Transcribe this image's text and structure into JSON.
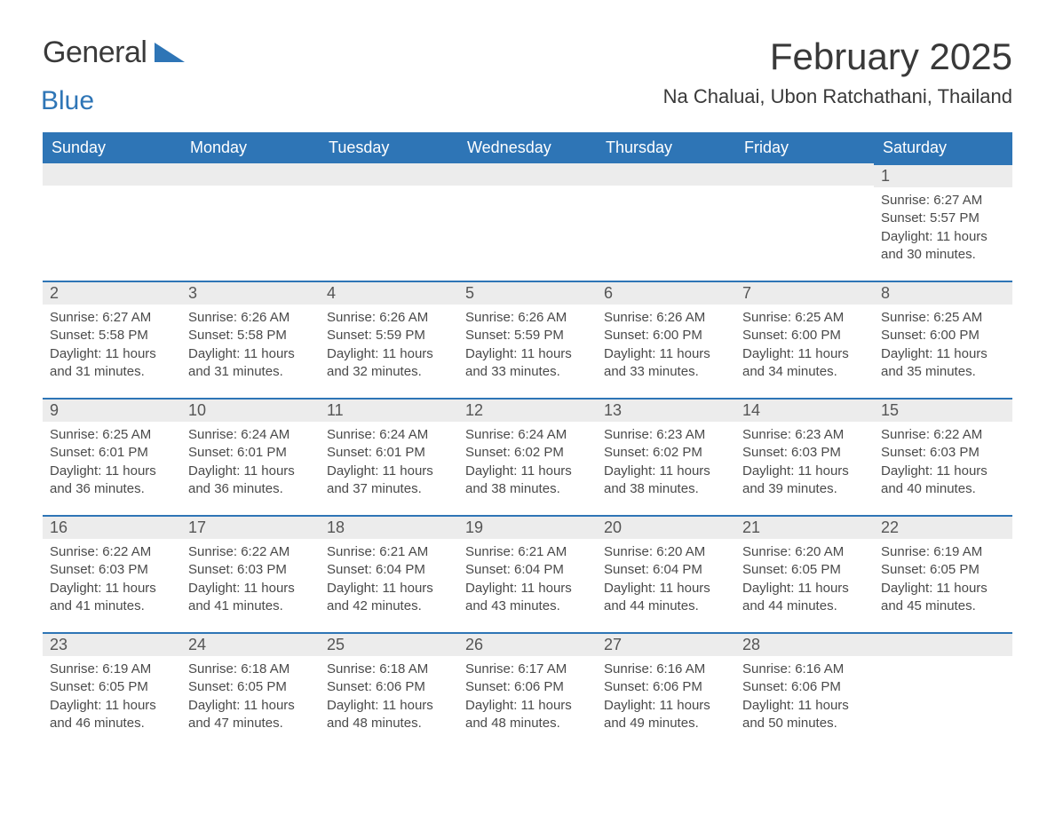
{
  "logo": {
    "part1": "General",
    "part2": "Blue",
    "color1": "#3a3a3a",
    "color2": "#2e75b6"
  },
  "title": "February 2025",
  "location": "Na Chaluai, Ubon Ratchathani, Thailand",
  "styling": {
    "header_bg": "#2e75b6",
    "header_fg": "#ffffff",
    "daynum_bg": "#ececec",
    "daynum_border": "#2e75b6",
    "text_color": "#4a4a4a",
    "title_fontsize": 42,
    "location_fontsize": 22,
    "header_fontsize": 18,
    "daynum_fontsize": 18,
    "body_fontsize": 15,
    "page_bg": "#ffffff"
  },
  "columns": [
    "Sunday",
    "Monday",
    "Tuesday",
    "Wednesday",
    "Thursday",
    "Friday",
    "Saturday"
  ],
  "weeks": [
    [
      null,
      null,
      null,
      null,
      null,
      null,
      {
        "n": "1",
        "sunrise": "6:27 AM",
        "sunset": "5:57 PM",
        "daylight": "11 hours and 30 minutes."
      }
    ],
    [
      {
        "n": "2",
        "sunrise": "6:27 AM",
        "sunset": "5:58 PM",
        "daylight": "11 hours and 31 minutes."
      },
      {
        "n": "3",
        "sunrise": "6:26 AM",
        "sunset": "5:58 PM",
        "daylight": "11 hours and 31 minutes."
      },
      {
        "n": "4",
        "sunrise": "6:26 AM",
        "sunset": "5:59 PM",
        "daylight": "11 hours and 32 minutes."
      },
      {
        "n": "5",
        "sunrise": "6:26 AM",
        "sunset": "5:59 PM",
        "daylight": "11 hours and 33 minutes."
      },
      {
        "n": "6",
        "sunrise": "6:26 AM",
        "sunset": "6:00 PM",
        "daylight": "11 hours and 33 minutes."
      },
      {
        "n": "7",
        "sunrise": "6:25 AM",
        "sunset": "6:00 PM",
        "daylight": "11 hours and 34 minutes."
      },
      {
        "n": "8",
        "sunrise": "6:25 AM",
        "sunset": "6:00 PM",
        "daylight": "11 hours and 35 minutes."
      }
    ],
    [
      {
        "n": "9",
        "sunrise": "6:25 AM",
        "sunset": "6:01 PM",
        "daylight": "11 hours and 36 minutes."
      },
      {
        "n": "10",
        "sunrise": "6:24 AM",
        "sunset": "6:01 PM",
        "daylight": "11 hours and 36 minutes."
      },
      {
        "n": "11",
        "sunrise": "6:24 AM",
        "sunset": "6:01 PM",
        "daylight": "11 hours and 37 minutes."
      },
      {
        "n": "12",
        "sunrise": "6:24 AM",
        "sunset": "6:02 PM",
        "daylight": "11 hours and 38 minutes."
      },
      {
        "n": "13",
        "sunrise": "6:23 AM",
        "sunset": "6:02 PM",
        "daylight": "11 hours and 38 minutes."
      },
      {
        "n": "14",
        "sunrise": "6:23 AM",
        "sunset": "6:03 PM",
        "daylight": "11 hours and 39 minutes."
      },
      {
        "n": "15",
        "sunrise": "6:22 AM",
        "sunset": "6:03 PM",
        "daylight": "11 hours and 40 minutes."
      }
    ],
    [
      {
        "n": "16",
        "sunrise": "6:22 AM",
        "sunset": "6:03 PM",
        "daylight": "11 hours and 41 minutes."
      },
      {
        "n": "17",
        "sunrise": "6:22 AM",
        "sunset": "6:03 PM",
        "daylight": "11 hours and 41 minutes."
      },
      {
        "n": "18",
        "sunrise": "6:21 AM",
        "sunset": "6:04 PM",
        "daylight": "11 hours and 42 minutes."
      },
      {
        "n": "19",
        "sunrise": "6:21 AM",
        "sunset": "6:04 PM",
        "daylight": "11 hours and 43 minutes."
      },
      {
        "n": "20",
        "sunrise": "6:20 AM",
        "sunset": "6:04 PM",
        "daylight": "11 hours and 44 minutes."
      },
      {
        "n": "21",
        "sunrise": "6:20 AM",
        "sunset": "6:05 PM",
        "daylight": "11 hours and 44 minutes."
      },
      {
        "n": "22",
        "sunrise": "6:19 AM",
        "sunset": "6:05 PM",
        "daylight": "11 hours and 45 minutes."
      }
    ],
    [
      {
        "n": "23",
        "sunrise": "6:19 AM",
        "sunset": "6:05 PM",
        "daylight": "11 hours and 46 minutes."
      },
      {
        "n": "24",
        "sunrise": "6:18 AM",
        "sunset": "6:05 PM",
        "daylight": "11 hours and 47 minutes."
      },
      {
        "n": "25",
        "sunrise": "6:18 AM",
        "sunset": "6:06 PM",
        "daylight": "11 hours and 48 minutes."
      },
      {
        "n": "26",
        "sunrise": "6:17 AM",
        "sunset": "6:06 PM",
        "daylight": "11 hours and 48 minutes."
      },
      {
        "n": "27",
        "sunrise": "6:16 AM",
        "sunset": "6:06 PM",
        "daylight": "11 hours and 49 minutes."
      },
      {
        "n": "28",
        "sunrise": "6:16 AM",
        "sunset": "6:06 PM",
        "daylight": "11 hours and 50 minutes."
      },
      null
    ]
  ],
  "labels": {
    "sunrise": "Sunrise: ",
    "sunset": "Sunset: ",
    "daylight": "Daylight: "
  }
}
